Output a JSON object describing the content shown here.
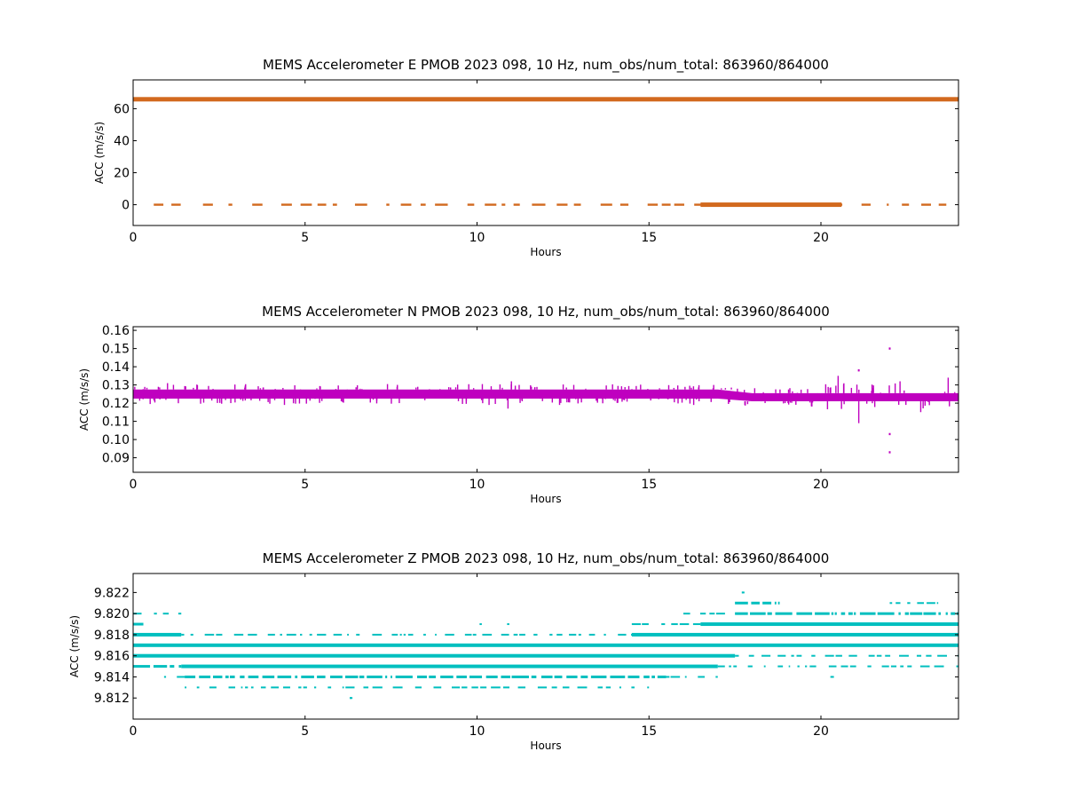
{
  "chart_data": [
    {
      "type": "scatter",
      "title": "MEMS Accelerometer E PMOB 2023 098, 10 Hz, num_obs/num_total: 863960/864000",
      "xlabel": "Hours",
      "ylabel": "ACC (m/s/s)",
      "xlim": [
        0,
        24
      ],
      "ylim": [
        -13,
        78
      ],
      "xticks": [
        0,
        5,
        10,
        15,
        20
      ],
      "xtick_labels": [
        "0",
        "5",
        "10",
        "15",
        "20"
      ],
      "yticks": [
        0,
        20,
        40,
        60
      ],
      "ytick_labels": [
        "0",
        "20",
        "40",
        "60"
      ],
      "grid": false,
      "color": "#d2691e",
      "series": [
        {
          "points": [
            {
              "x_start": 0,
              "x_end": 24,
              "y": 65.9,
              "density": "continuous"
            },
            {
              "x_start": 0.6,
              "x_end": 23.8,
              "y": 0,
              "density": "sparse"
            },
            {
              "x_start": 16.5,
              "x_end": 20.6,
              "y": 0,
              "density": "continuous"
            }
          ]
        }
      ]
    },
    {
      "type": "scatter",
      "title": "MEMS Accelerometer N PMOB 2023 098, 10 Hz, num_obs/num_total: 863960/864000",
      "xlabel": "Hours",
      "ylabel": "ACC (m/s/s)",
      "xlim": [
        0,
        24
      ],
      "ylim": [
        0.082,
        0.162
      ],
      "xticks": [
        0,
        5,
        10,
        15,
        20
      ],
      "xtick_labels": [
        "0",
        "5",
        "10",
        "15",
        "20"
      ],
      "yticks": [
        0.09,
        0.1,
        0.11,
        0.12,
        0.13,
        0.14,
        0.15,
        0.16
      ],
      "ytick_labels": [
        "0.09",
        "0.10",
        "0.11",
        "0.12",
        "0.13",
        "0.14",
        "0.15",
        "0.16"
      ],
      "grid": false,
      "color": "#bf00bf",
      "series": [
        {
          "band": [
            {
              "x": 0,
              "y_low": 0.1225,
              "y_high": 0.1275
            },
            {
              "x": 17.0,
              "y_low": 0.1225,
              "y_high": 0.1275
            },
            {
              "x": 18.0,
              "y_low": 0.121,
              "y_high": 0.1255
            },
            {
              "x": 24,
              "y_low": 0.121,
              "y_high": 0.1255
            }
          ],
          "spikes": [
            {
              "x": 1.0,
              "y": 0.131
            },
            {
              "x": 4.4,
              "y": 0.119
            },
            {
              "x": 10.35,
              "y": 0.119
            },
            {
              "x": 10.9,
              "y": 0.117
            },
            {
              "x": 11.0,
              "y": 0.132
            },
            {
              "x": 12.4,
              "y": 0.119
            },
            {
              "x": 16.3,
              "y": 0.119
            },
            {
              "x": 20.5,
              "y": 0.135
            },
            {
              "x": 21.1,
              "y": 0.138
            },
            {
              "x": 21.1,
              "y": 0.109
            },
            {
              "x": 22.0,
              "y": 0.15
            },
            {
              "x": 22.0,
              "y": 0.093
            },
            {
              "x": 22.0,
              "y": 0.103
            },
            {
              "x": 22.3,
              "y": 0.132
            },
            {
              "x": 23.7,
              "y": 0.134
            }
          ]
        }
      ]
    },
    {
      "type": "scatter",
      "title": "MEMS Accelerometer Z PMOB 2023 098, 10 Hz, num_obs/num_total: 863960/864000",
      "xlabel": "Hours",
      "ylabel": "ACC (m/s/s)",
      "xlim": [
        0,
        24
      ],
      "ylim": [
        9.81,
        9.8238
      ],
      "xticks": [
        0,
        5,
        10,
        15,
        20
      ],
      "xtick_labels": [
        "0",
        "5",
        "10",
        "15",
        "20"
      ],
      "yticks": [
        9.812,
        9.814,
        9.816,
        9.818,
        9.82,
        9.822
      ],
      "ytick_labels": [
        "9.812",
        "9.814",
        "9.816",
        "9.818",
        "9.820",
        "9.822"
      ],
      "grid": false,
      "color": "#00bfbf",
      "series": [
        {
          "levels": [
            {
              "y": 9.812,
              "segments": [
                {
                  "x_start": 6.3,
                  "x_end": 6.35,
                  "weight": "sparse"
                }
              ]
            },
            {
              "y": 9.813,
              "segments": [
                {
                  "x_start": 1.5,
                  "x_end": 15.0,
                  "weight": "sparse"
                }
              ]
            },
            {
              "y": 9.814,
              "segments": [
                {
                  "x_start": 0.9,
                  "x_end": 1.5,
                  "weight": "sparse"
                },
                {
                  "x_start": 1.5,
                  "x_end": 15.5,
                  "weight": "medium"
                },
                {
                  "x_start": 15.5,
                  "x_end": 17.0,
                  "weight": "sparse"
                },
                {
                  "x_start": 20.3,
                  "x_end": 20.4,
                  "weight": "sparse"
                }
              ]
            },
            {
              "y": 9.815,
              "segments": [
                {
                  "x_start": 0,
                  "x_end": 1.4,
                  "weight": "medium"
                },
                {
                  "x_start": 1.4,
                  "x_end": 17.0,
                  "weight": "heavy"
                },
                {
                  "x_start": 17.0,
                  "x_end": 24,
                  "weight": "sparse"
                }
              ]
            },
            {
              "y": 9.816,
              "segments": [
                {
                  "x_start": 0,
                  "x_end": 17.5,
                  "weight": "heavy"
                },
                {
                  "x_start": 17.5,
                  "x_end": 24,
                  "weight": "sparse"
                }
              ]
            },
            {
              "y": 9.817,
              "segments": [
                {
                  "x_start": 0,
                  "x_end": 24,
                  "weight": "heavy"
                }
              ]
            },
            {
              "y": 9.818,
              "segments": [
                {
                  "x_start": 0,
                  "x_end": 1.4,
                  "weight": "heavy"
                },
                {
                  "x_start": 1.4,
                  "x_end": 14.5,
                  "weight": "sparse"
                },
                {
                  "x_start": 14.5,
                  "x_end": 24,
                  "weight": "heavy"
                }
              ]
            },
            {
              "y": 9.819,
              "segments": [
                {
                  "x_start": 0,
                  "x_end": 0.3,
                  "weight": "medium"
                },
                {
                  "x_start": 14.5,
                  "x_end": 16.5,
                  "weight": "sparse"
                },
                {
                  "x_start": 16.5,
                  "x_end": 24,
                  "weight": "heavy"
                }
              ]
            },
            {
              "y": 9.82,
              "segments": [
                {
                  "x_start": 0,
                  "x_end": 1.4,
                  "weight": "sparse"
                },
                {
                  "x_start": 16.0,
                  "x_end": 17.5,
                  "weight": "sparse"
                },
                {
                  "x_start": 17.5,
                  "x_end": 24,
                  "weight": "medium"
                }
              ]
            },
            {
              "y": 9.821,
              "segments": [
                {
                  "x_start": 17.5,
                  "x_end": 18.8,
                  "weight": "medium"
                },
                {
                  "x_start": 22.0,
                  "x_end": 23.4,
                  "weight": "sparse"
                }
              ]
            },
            {
              "y": 9.822,
              "segments": [
                {
                  "x_start": 17.7,
                  "x_end": 17.75,
                  "weight": "sparse"
                }
              ]
            }
          ],
          "extras": [
            {
              "x": 10.1,
              "y": 9.819
            },
            {
              "x": 10.9,
              "y": 9.819
            },
            {
              "x": 20.3,
              "y": 9.814
            }
          ]
        }
      ]
    }
  ]
}
